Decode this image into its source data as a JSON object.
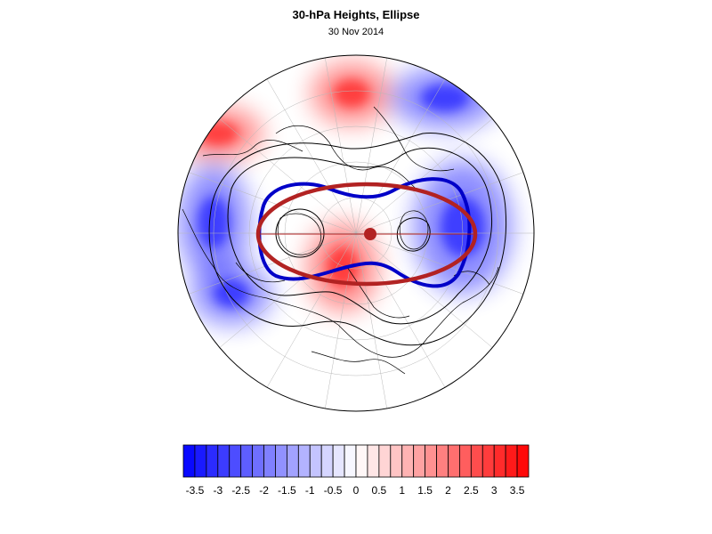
{
  "title": "30-hPa Heights, Ellipse",
  "subtitle": "30 Nov 2014",
  "map": {
    "projection": "polar stereographic, north pole centered",
    "field": "30-hPa height anomaly",
    "overlay_colors": {
      "ellipse": "#b22222",
      "vortex_contour": "#0000c8",
      "height_contours": "#000000"
    },
    "anomaly_centers": [
      {
        "sign": "positive",
        "region": "upper-center"
      },
      {
        "sign": "positive",
        "region": "lower-center"
      },
      {
        "sign": "positive",
        "region": "upper-left"
      },
      {
        "sign": "negative",
        "region": "right"
      },
      {
        "sign": "negative",
        "region": "left"
      },
      {
        "sign": "negative",
        "region": "upper-right"
      },
      {
        "sign": "negative",
        "region": "lower-left"
      }
    ]
  },
  "colorbar": {
    "min": -3.75,
    "max": 3.75,
    "step": 0.25,
    "colors": {
      "negative": "#0000ff",
      "neutral": "#ffffff",
      "positive": "#ff0000"
    },
    "tick_labels": [
      "-3.5",
      "-3",
      "-2.5",
      "-2",
      "-1.5",
      "-1",
      "-0.5",
      "0",
      "0.5",
      "1",
      "1.5",
      "2",
      "2.5",
      "3",
      "3.5"
    ]
  }
}
